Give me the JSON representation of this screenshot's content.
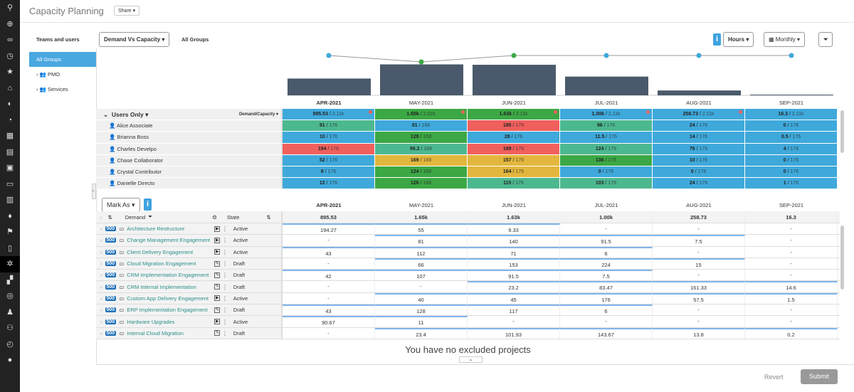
{
  "app": {
    "title": "Capacity Planning",
    "share_label": "Share"
  },
  "sidebar_icons": [
    "logo-icon",
    "add-icon",
    "infinity-icon",
    "history-icon",
    "star-icon",
    "home-icon",
    "dashboard-icon",
    "pie-icon",
    "building-icon",
    "book-icon",
    "briefcase-icon",
    "toolbox-icon",
    "clipboard-icon",
    "bulb-icon",
    "flag-icon",
    "report-icon",
    "capacity-icon",
    "workflow-icon",
    "target-icon",
    "user-icon",
    "team-icon",
    "timer-icon",
    "chat-icon"
  ],
  "left_panel": {
    "title": "Teams and users",
    "items": [
      "All Groups",
      "PMO",
      "Services"
    ]
  },
  "toolbar": {
    "view_select": "Demand Vs Capacity",
    "group_label": "All Groups",
    "units_select": "Hours",
    "period_select": "Monthly",
    "info": "i"
  },
  "colors": {
    "blue": "#3fa9db",
    "green": "#3ca845",
    "teal": "#4cb890",
    "red": "#f0605d",
    "yellow": "#e3b73e"
  },
  "months": [
    "APR-2021",
    "MAY-2021",
    "JUN-2021",
    "JUL-2021",
    "AUG-2021",
    "SEP-2021"
  ],
  "chart_data": {
    "type": "bar",
    "categories": [
      "APR-2021",
      "MAY-2021",
      "JUN-2021",
      "JUL-2021",
      "AUG-2021",
      "SEP-2021"
    ],
    "values": [
      895.53,
      1650,
      1630,
      1000,
      258.73,
      16.3
    ],
    "line_values": [
      2110,
      2020,
      2110,
      2110,
      2110,
      2110
    ]
  },
  "users_header": {
    "label": "Users Only",
    "measure": "Demand/Capacity",
    "totals": [
      [
        "895.53",
        "2.11k",
        "blue",
        true
      ],
      [
        "1.65k",
        "2.02k",
        "green",
        true
      ],
      [
        "1.63k",
        "2.11k",
        "green",
        true
      ],
      [
        "1.00k",
        "2.11k",
        "blue",
        true
      ],
      [
        "258.73",
        "2.11k",
        "blue",
        true
      ],
      [
        "16.3",
        "2.11k",
        "blue",
        false
      ]
    ]
  },
  "users": [
    {
      "name": "Alice Associate",
      "cells": [
        [
          "91",
          "176",
          "teal"
        ],
        [
          "81",
          "168",
          "blue"
        ],
        [
          "185",
          "176",
          "red"
        ],
        [
          "96",
          "176",
          "teal"
        ],
        [
          "24",
          "176",
          "blue"
        ],
        [
          "0",
          "176",
          "blue"
        ]
      ]
    },
    {
      "name": "Brianna Boss",
      "cells": [
        [
          "10",
          "176",
          "blue"
        ],
        [
          "128",
          "168",
          "green"
        ],
        [
          "28",
          "176",
          "blue"
        ],
        [
          "11.5",
          "176",
          "blue"
        ],
        [
          "14",
          "176",
          "blue"
        ],
        [
          "0.5",
          "176",
          "blue"
        ]
      ]
    },
    {
      "name": "Charles Develpo",
      "cells": [
        [
          "194",
          "176",
          "red"
        ],
        [
          "96.2",
          "168",
          "teal"
        ],
        [
          "189",
          "176",
          "red"
        ],
        [
          "124",
          "176",
          "teal"
        ],
        [
          "76",
          "176",
          "blue"
        ],
        [
          "4",
          "176",
          "blue"
        ]
      ]
    },
    {
      "name": "Chase Collaborator",
      "cells": [
        [
          "52",
          "176",
          "blue"
        ],
        [
          "169",
          "168",
          "yellow"
        ],
        [
          "157",
          "176",
          "yellow"
        ],
        [
          "136",
          "176",
          "green"
        ],
        [
          "10",
          "176",
          "blue"
        ],
        [
          "0",
          "176",
          "blue"
        ]
      ]
    },
    {
      "name": "Crystal Contributor",
      "cells": [
        [
          "8",
          "176",
          "blue"
        ],
        [
          "124",
          "168",
          "green"
        ],
        [
          "164",
          "176",
          "yellow"
        ],
        [
          "0",
          "176",
          "blue"
        ],
        [
          "0",
          "176",
          "blue"
        ],
        [
          "0",
          "176",
          "blue"
        ]
      ]
    },
    {
      "name": "Danielle Directo",
      "cells": [
        [
          "12",
          "176",
          "blue"
        ],
        [
          "126",
          "168",
          "green"
        ],
        [
          "115",
          "176",
          "teal"
        ],
        [
          "103",
          "176",
          "teal"
        ],
        [
          "24",
          "176",
          "blue"
        ],
        [
          "1",
          "176",
          "blue"
        ]
      ]
    }
  ],
  "demand_table": {
    "mark_as": "Mark As",
    "col_demand": "Demand",
    "col_state": "State",
    "totals": [
      "895.53",
      "1.65k",
      "1.63k",
      "1.00k",
      "258.73",
      "16.3"
    ],
    "rows": [
      {
        "id": "500",
        "name": "Architecture Restructure",
        "state": "Active",
        "values": [
          "194.27",
          "55",
          "9.33",
          "-",
          "-",
          "-"
        ]
      },
      {
        "id": "500",
        "name": "Change Management Engagement",
        "state": "Active",
        "values": [
          "-",
          "81",
          "140",
          "91.5",
          "7.5",
          "-"
        ]
      },
      {
        "id": "500",
        "name": "Client Delivery Engagement",
        "state": "Active",
        "values": [
          "43",
          "112",
          "71",
          "6",
          "-",
          "-"
        ]
      },
      {
        "id": "500",
        "name": "Cloud Migration Engagement",
        "state": "Draft",
        "values": [
          "-",
          "66",
          "153",
          "224",
          "15",
          "-"
        ]
      },
      {
        "id": "500",
        "name": "CRM Implementation Engagement",
        "state": "Draft",
        "values": [
          "42",
          "107",
          "91.5",
          "7.5",
          "-",
          "-"
        ]
      },
      {
        "id": "500",
        "name": "CRM Internal Implementation",
        "state": "Draft",
        "values": [
          "-",
          "-",
          "23.2",
          "83.47",
          "161.33",
          "14.6"
        ]
      },
      {
        "id": "500",
        "name": "Custom App Delivery Engagement",
        "state": "Active",
        "values": [
          "-",
          "40",
          "45",
          "176",
          "57.5",
          "1.5"
        ]
      },
      {
        "id": "500",
        "name": "ERP Implementation Engagement",
        "state": "Draft",
        "values": [
          "43",
          "128",
          "117",
          "6",
          "-",
          "-"
        ]
      },
      {
        "id": "500",
        "name": "Hardware Upgrades",
        "state": "Active",
        "values": [
          "90.67",
          "11",
          "-",
          "-",
          "-",
          "-"
        ]
      },
      {
        "id": "500",
        "name": "Internal Cloud Migration",
        "state": "Draft",
        "values": [
          "-",
          "23.4",
          "101.93",
          "143.67",
          "13.8",
          "0.2"
        ]
      }
    ]
  },
  "excluded_message": "You have no excluded projects",
  "footer": {
    "revert": "Revert",
    "submit": "Submit"
  }
}
